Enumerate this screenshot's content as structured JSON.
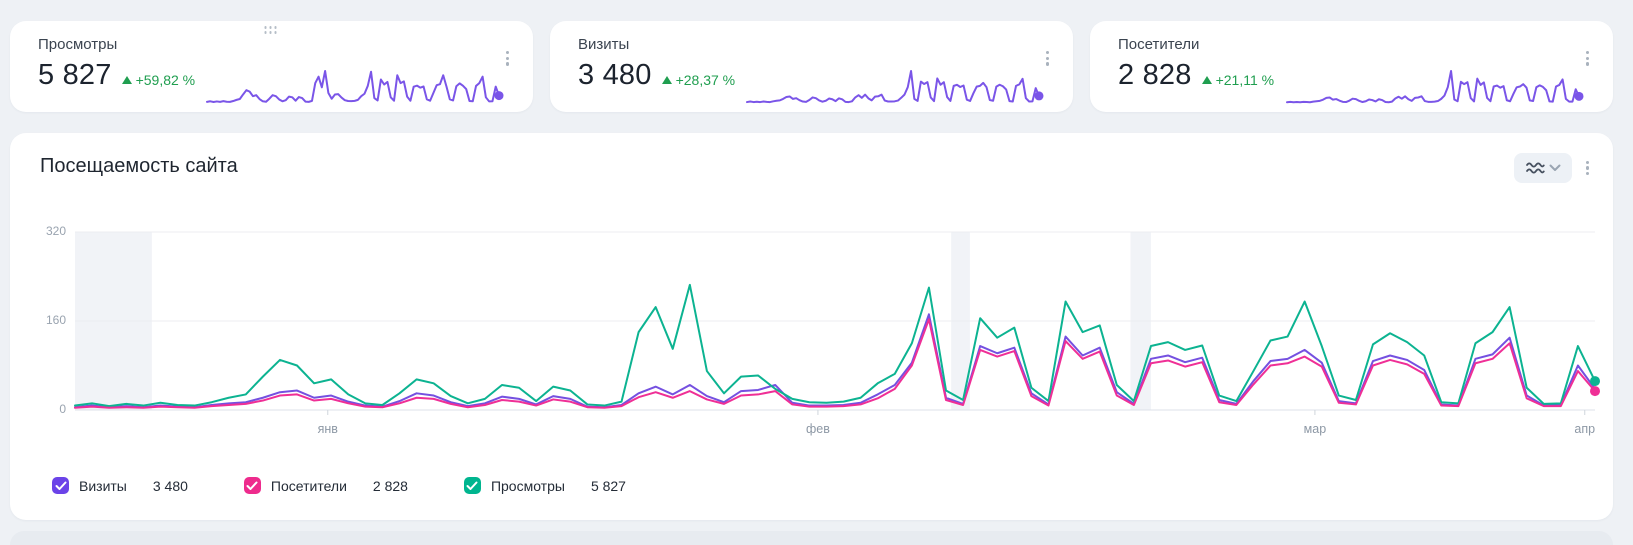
{
  "page": {
    "background": "#eef1f5"
  },
  "kpi_spark_color": "#7a55e8",
  "kpi_delta_color": "#1f9e4f",
  "kpi_cards": [
    {
      "title": "Просмотры",
      "value": "5 827",
      "delta": "+59,82 %",
      "spark_series": 2
    },
    {
      "title": "Визиты",
      "value": "3 480",
      "delta": "+28,37 %",
      "spark_series": 0
    },
    {
      "title": "Посетители",
      "value": "2 828",
      "delta": "+21,11 %",
      "spark_series": 1
    }
  ],
  "chart_card": {
    "title": "Посещаемость сайта",
    "legend": [
      {
        "label": "Визиты",
        "value": "3 480",
        "color": "#6b43e8"
      },
      {
        "label": "Посетители",
        "value": "2 828",
        "color": "#ee2b8d"
      },
      {
        "label": "Просмотры",
        "value": "5 827",
        "color": "#00b58f"
      }
    ]
  },
  "chart_data": {
    "type": "line",
    "title": "Посещаемость сайта",
    "xlabel": "",
    "ylabel": "",
    "ylim": [
      0,
      320
    ],
    "yticks": [
      0,
      160,
      320
    ],
    "grid": true,
    "legend_position": "bottom",
    "band_color": "#edf0f5",
    "bands": [
      [
        0,
        4.5
      ],
      [
        51.3,
        52.4
      ],
      [
        61.8,
        63.0
      ]
    ],
    "xticks": [
      {
        "label": "янв",
        "index": 14.8
      },
      {
        "label": "фев",
        "index": 43.5
      },
      {
        "label": "мар",
        "index": 72.6
      },
      {
        "label": "апр",
        "index": 88.4
      }
    ],
    "order": [
      0,
      2,
      1
    ],
    "series": [
      {
        "name": "Визиты",
        "color": "#7550e0",
        "end_dot": false,
        "values": [
          5,
          8,
          5,
          7,
          5,
          8,
          6,
          5,
          9,
          12,
          14,
          22,
          32,
          35,
          22,
          26,
          15,
          8,
          6,
          16,
          30,
          26,
          14,
          7,
          12,
          24,
          20,
          10,
          25,
          20,
          6,
          5,
          9,
          30,
          42,
          28,
          45,
          25,
          14,
          34,
          36,
          45,
          13,
          8,
          8,
          9,
          13,
          28,
          45,
          85,
          172,
          22,
          11,
          115,
          102,
          112,
          30,
          10,
          132,
          98,
          112,
          32,
          11,
          92,
          98,
          86,
          94,
          18,
          11,
          52,
          88,
          92,
          108,
          85,
          16,
          12,
          88,
          98,
          90,
          72,
          10,
          8,
          92,
          100,
          130,
          26,
          8,
          9,
          80,
          38
        ]
      },
      {
        "name": "Посетители",
        "color": "#ef2f96",
        "end_dot": true,
        "values": [
          4,
          6,
          4,
          5,
          4,
          6,
          5,
          4,
          7,
          9,
          11,
          17,
          26,
          28,
          17,
          20,
          12,
          6,
          5,
          12,
          22,
          20,
          11,
          5,
          9,
          18,
          15,
          8,
          19,
          15,
          5,
          4,
          7,
          23,
          32,
          22,
          34,
          19,
          11,
          26,
          28,
          34,
          10,
          6,
          6,
          7,
          10,
          21,
          38,
          80,
          163,
          18,
          9,
          108,
          96,
          106,
          25,
          8,
          124,
          92,
          105,
          26,
          9,
          84,
          89,
          78,
          86,
          14,
          9,
          46,
          80,
          84,
          96,
          78,
          13,
          10,
          80,
          90,
          82,
          65,
          8,
          7,
          84,
          92,
          120,
          21,
          7,
          7,
          70,
          34
        ]
      },
      {
        "name": "Просмотры",
        "color": "#0cb391",
        "end_dot": true,
        "values": [
          8,
          12,
          7,
          11,
          8,
          13,
          9,
          8,
          14,
          22,
          28,
          60,
          90,
          80,
          48,
          55,
          28,
          12,
          9,
          30,
          55,
          48,
          25,
          12,
          20,
          45,
          40,
          16,
          42,
          35,
          10,
          8,
          15,
          140,
          185,
          110,
          225,
          70,
          30,
          60,
          62,
          38,
          20,
          14,
          13,
          15,
          22,
          48,
          65,
          120,
          220,
          35,
          18,
          165,
          130,
          148,
          40,
          16,
          195,
          140,
          152,
          45,
          16,
          115,
          122,
          108,
          116,
          26,
          16,
          70,
          125,
          132,
          195,
          115,
          26,
          18,
          118,
          138,
          122,
          98,
          14,
          12,
          120,
          140,
          185,
          40,
          11,
          12,
          115,
          52
        ]
      }
    ]
  }
}
